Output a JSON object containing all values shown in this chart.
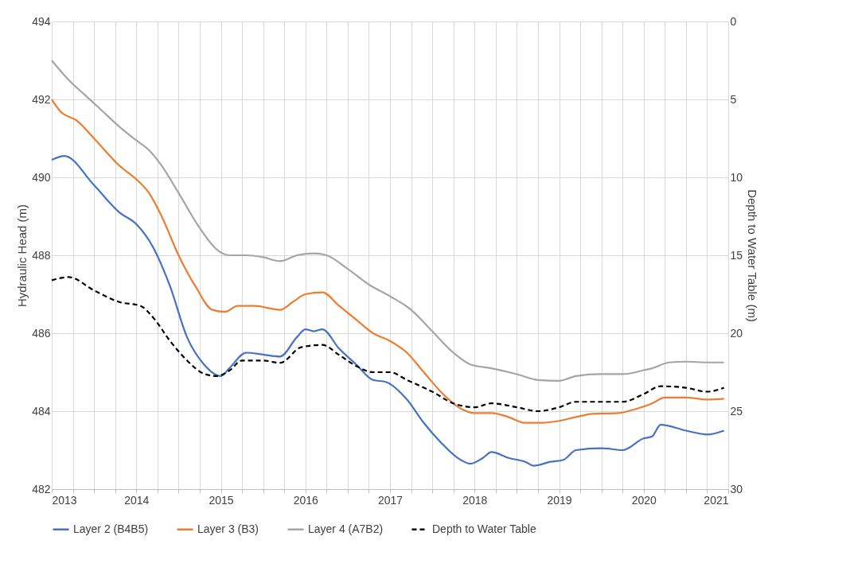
{
  "chart_data": {
    "type": "line",
    "xlabel": null,
    "ylabel": "Hydraulic Head (m)",
    "y2label": "Depth to Water Table (m)",
    "xlim": [
      2013,
      2021
    ],
    "xticks": [
      2013,
      {
        "value": 2013.25,
        "label": null
      },
      {
        "value": 2013.5,
        "label": null
      },
      {
        "value": 2013.75,
        "label": null
      },
      2014,
      {
        "value": 2014.25,
        "label": null
      },
      {
        "value": 2014.5,
        "label": null
      },
      {
        "value": 2014.75,
        "label": null
      },
      2015,
      {
        "value": 2015.25,
        "label": null
      },
      {
        "value": 2015.5,
        "label": null
      },
      {
        "value": 2015.75,
        "label": null
      },
      2016,
      {
        "value": 2016.25,
        "label": null
      },
      {
        "value": 2016.5,
        "label": null
      },
      {
        "value": 2016.75,
        "label": null
      },
      2017,
      {
        "value": 2017.25,
        "label": null
      },
      {
        "value": 2017.5,
        "label": null
      },
      {
        "value": 2017.75,
        "label": null
      },
      2018,
      {
        "value": 2018.25,
        "label": null
      },
      {
        "value": 2018.5,
        "label": null
      },
      {
        "value": 2018.75,
        "label": null
      },
      2019,
      {
        "value": 2019.25,
        "label": null
      },
      {
        "value": 2019.5,
        "label": null
      },
      {
        "value": 2019.75,
        "label": null
      },
      2020,
      {
        "value": 2020.25,
        "label": null
      },
      {
        "value": 2020.5,
        "label": null
      },
      {
        "value": 2020.75,
        "label": null
      },
      2021
    ],
    "ylim": [
      482,
      494
    ],
    "yticks": [
      482,
      484,
      486,
      488,
      490,
      492,
      494
    ],
    "y2lim": [
      30,
      0
    ],
    "y2ticks": [
      0,
      5,
      10,
      15,
      20,
      25,
      30
    ],
    "grid": true,
    "legend": "bottom",
    "marker": "none",
    "series": [
      {
        "name": "Layer 2 (B4B5)",
        "color": "#4472c4",
        "line_style": "solid",
        "x": [
          2013.0,
          2013.15,
          2013.5,
          2013.8,
          2014.0,
          2014.2,
          2014.4,
          2014.6,
          2014.8,
          2015.0,
          2015.1,
          2015.3,
          2015.5,
          2015.7,
          2015.9,
          2016.0,
          2016.1,
          2016.2,
          2016.4,
          2016.6,
          2016.8,
          2016.95,
          2017.2,
          2017.4,
          2017.6,
          2017.8,
          2017.95,
          2018.1,
          2018.2,
          2018.4,
          2018.6,
          2018.7,
          2018.9,
          2019.05,
          2019.2,
          2019.5,
          2019.75,
          2020.0,
          2020.1,
          2020.2,
          2020.5,
          2020.75,
          2020.95
        ],
        "values": [
          490.45,
          490.55,
          489.8,
          489.1,
          488.8,
          488.2,
          487.2,
          485.9,
          485.2,
          484.9,
          485.1,
          485.5,
          485.45,
          485.4,
          485.9,
          486.1,
          486.05,
          486.1,
          485.6,
          485.2,
          484.8,
          484.75,
          484.3,
          483.7,
          483.2,
          482.8,
          482.65,
          482.8,
          482.95,
          482.8,
          482.7,
          482.6,
          482.7,
          482.75,
          483.0,
          483.05,
          483.0,
          483.3,
          483.35,
          483.65,
          483.5,
          483.4,
          483.5
        ]
      },
      {
        "name": "Layer 3 (B3)",
        "color": "#ed7d31",
        "line_style": "solid",
        "x": [
          2013.0,
          2013.1,
          2013.3,
          2013.5,
          2013.8,
          2014.0,
          2014.15,
          2014.3,
          2014.5,
          2014.7,
          2014.9,
          2015.05,
          2015.2,
          2015.4,
          2015.7,
          2015.85,
          2016.0,
          2016.2,
          2016.4,
          2016.6,
          2016.8,
          2017.0,
          2017.2,
          2017.4,
          2017.6,
          2017.85,
          2018.0,
          2018.2,
          2018.4,
          2018.6,
          2018.8,
          2019.0,
          2019.2,
          2019.4,
          2019.7,
          2019.9,
          2020.1,
          2020.25,
          2020.5,
          2020.75,
          2020.95
        ],
        "values": [
          492.0,
          491.7,
          491.45,
          491.0,
          490.3,
          489.95,
          489.6,
          489.0,
          488.0,
          487.2,
          486.6,
          486.55,
          486.7,
          486.7,
          486.6,
          486.8,
          487.0,
          487.05,
          486.7,
          486.35,
          486.0,
          485.8,
          485.5,
          485.0,
          484.5,
          484.05,
          483.95,
          483.95,
          483.85,
          483.7,
          483.7,
          483.75,
          483.85,
          483.93,
          483.95,
          484.05,
          484.2,
          484.35,
          484.35,
          484.3,
          484.32
        ]
      },
      {
        "name": "Layer 4 (A7B2)",
        "color": "#a5a5a5",
        "line_style": "solid",
        "x": [
          2013.0,
          2013.2,
          2013.4,
          2013.6,
          2013.8,
          2014.0,
          2014.15,
          2014.3,
          2014.5,
          2014.75,
          2014.95,
          2015.1,
          2015.3,
          2015.5,
          2015.7,
          2015.9,
          2016.1,
          2016.25,
          2016.5,
          2016.75,
          2017.0,
          2017.25,
          2017.5,
          2017.75,
          2017.95,
          2018.2,
          2018.5,
          2018.75,
          2019.0,
          2019.2,
          2019.5,
          2019.75,
          2020.0,
          2020.1,
          2020.3,
          2020.5,
          2020.75,
          2020.95
        ],
        "values": [
          493.0,
          492.5,
          492.1,
          491.7,
          491.3,
          490.95,
          490.7,
          490.3,
          489.6,
          488.7,
          488.15,
          488.0,
          488.0,
          487.95,
          487.85,
          488.0,
          488.05,
          488.0,
          487.65,
          487.25,
          486.95,
          486.6,
          486.05,
          485.5,
          485.2,
          485.1,
          484.95,
          484.8,
          484.78,
          484.9,
          484.95,
          484.95,
          485.05,
          485.1,
          485.25,
          485.27,
          485.25,
          485.25
        ]
      },
      {
        "name": "Depth to Water Table",
        "color": "#000000",
        "line_style": "dashed",
        "axis": "y2",
        "x": [
          2013.0,
          2013.2,
          2013.5,
          2013.8,
          2014.05,
          2014.2,
          2014.4,
          2014.6,
          2014.8,
          2014.95,
          2015.1,
          2015.25,
          2015.5,
          2015.7,
          2015.95,
          2016.2,
          2016.4,
          2016.6,
          2016.8,
          2017.0,
          2017.2,
          2017.5,
          2017.75,
          2018.0,
          2018.2,
          2018.5,
          2018.75,
          2019.0,
          2019.2,
          2019.5,
          2019.75,
          2020.0,
          2020.2,
          2020.5,
          2020.75,
          2020.95
        ],
        "values": [
          16.6,
          16.4,
          17.25,
          18.0,
          18.25,
          19.0,
          20.5,
          21.75,
          22.6,
          22.75,
          22.4,
          21.75,
          21.75,
          21.9,
          20.9,
          20.75,
          21.4,
          22.1,
          22.5,
          22.5,
          23.0,
          23.75,
          24.5,
          24.75,
          24.5,
          24.75,
          25.0,
          24.75,
          24.4,
          24.4,
          24.4,
          23.9,
          23.4,
          23.5,
          23.75,
          23.5
        ]
      }
    ]
  }
}
